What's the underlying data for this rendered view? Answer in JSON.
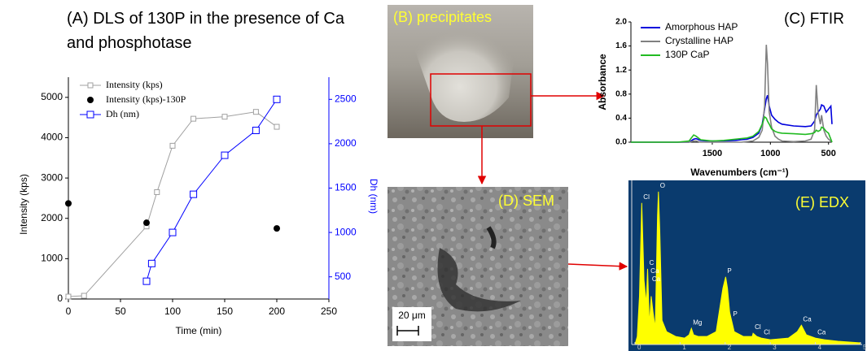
{
  "chart_data": [
    {
      "type": "line",
      "title": "(A) DLS of 130P in the presence of Ca and phosphotase",
      "x_label": "Time (min)",
      "y_label": "Intensity (kps)",
      "y2_label": "Dh (nm)",
      "xlim": [
        0,
        250
      ],
      "xticks": [
        0,
        50,
        100,
        150,
        200,
        250
      ],
      "ylim": [
        0,
        5500
      ],
      "yticks": [
        0,
        1000,
        2000,
        3000,
        4000,
        5000
      ],
      "y2lim": [
        250,
        2750
      ],
      "y2ticks": [
        500,
        1000,
        1500,
        2000,
        2500
      ],
      "legend": "upper left",
      "series": [
        {
          "name": "Intensity (kps)",
          "color": "#a0a0a0",
          "marker": "open-square",
          "line": true,
          "x": [
            0,
            15,
            75,
            85,
            100,
            120,
            150,
            180,
            200
          ],
          "values": [
            60,
            80,
            1800,
            2650,
            3800,
            4470,
            4520,
            4640,
            4270
          ]
        },
        {
          "name": "Intensity (kps)-130P",
          "color": "#000000",
          "marker": "dot",
          "line": false,
          "x": [
            0,
            75,
            200
          ],
          "values": [
            2370,
            1890,
            1750
          ]
        },
        {
          "name": "Dh (nm)",
          "color": "#0000ff",
          "marker": "open-square",
          "line": true,
          "axis": "y2",
          "x": [
            75,
            80,
            100,
            120,
            150,
            180,
            200
          ],
          "values": [
            450,
            650,
            1000,
            1430,
            1870,
            2150,
            2500
          ]
        }
      ]
    },
    {
      "type": "line",
      "title": "(C) FTIR",
      "x_label": "Wavenumbers (cm⁻¹)",
      "y_label": "Absorbance",
      "xlim": [
        2200,
        470
      ],
      "xticks": [
        1500,
        1000,
        500
      ],
      "ylim": [
        0,
        2
      ],
      "yticks": [
        {
          "value": 0,
          "label": "0.0"
        },
        0.4,
        0.8,
        1.2,
        1.6,
        {
          "value": 2,
          "label": "2.0"
        }
      ],
      "legend": "upper left",
      "x": [
        2200,
        2000,
        1800,
        1700,
        1660,
        1640,
        1600,
        1550,
        1500,
        1400,
        1300,
        1250,
        1200,
        1150,
        1100,
        1070,
        1050,
        1035,
        1025,
        1010,
        990,
        960,
        930,
        900,
        800,
        700,
        650,
        620,
        605,
        590,
        570,
        560,
        540,
        520,
        500,
        480,
        470
      ],
      "series": [
        {
          "name": "Amorphous HAP",
          "color": "#0000dd",
          "values": [
            0,
            0,
            0,
            0,
            0.05,
            0.06,
            0.03,
            0.02,
            0.02,
            0.02,
            0.03,
            0.04,
            0.05,
            0.08,
            0.15,
            0.3,
            0.55,
            0.72,
            0.78,
            0.6,
            0.45,
            0.38,
            0.33,
            0.3,
            0.27,
            0.26,
            0.27,
            0.35,
            0.45,
            0.5,
            0.55,
            0.62,
            0.6,
            0.5,
            0.55,
            0.6,
            0.3
          ]
        },
        {
          "name": "Crystalline HAP",
          "color": "#808080",
          "values": [
            0,
            0,
            0,
            0,
            0.02,
            0.02,
            0,
            0,
            0,
            0,
            0,
            0,
            0.01,
            0.02,
            0.08,
            0.2,
            0.6,
            1.62,
            1.3,
            0.5,
            0.25,
            0.1,
            0.05,
            0.02,
            0.01,
            0.02,
            0.05,
            0.2,
            0.95,
            0.5,
            0.3,
            0.45,
            0.2,
            0.1,
            0.05,
            0.02,
            0
          ]
        },
        {
          "name": "130P CaP",
          "color": "#22bb22",
          "values": [
            0,
            0,
            0,
            0.02,
            0.12,
            0.1,
            0.04,
            0.03,
            0.02,
            0.03,
            0.05,
            0.06,
            0.07,
            0.1,
            0.18,
            0.3,
            0.42,
            0.4,
            0.35,
            0.3,
            0.22,
            0.18,
            0.16,
            0.15,
            0.14,
            0.13,
            0.14,
            0.16,
            0.2,
            0.18,
            0.2,
            0.25,
            0.23,
            0.18,
            0.15,
            0.05,
            0
          ]
        }
      ]
    },
    {
      "type": "area",
      "title": "(E) EDX",
      "color": "#ffff00",
      "background": "#0a3b6e",
      "xlim": [
        0,
        5
      ],
      "xticks": [
        0,
        1,
        2,
        3,
        4,
        5
      ],
      "ylim": [
        0,
        100
      ],
      "x": [
        0,
        0.05,
        0.1,
        0.15,
        0.2,
        0.25,
        0.28,
        0.32,
        0.36,
        0.4,
        0.45,
        0.5,
        0.52,
        0.55,
        0.6,
        0.7,
        0.9,
        1.1,
        1.2,
        1.25,
        1.3,
        1.4,
        1.6,
        1.8,
        1.95,
        2.01,
        2.05,
        2.1,
        2.2,
        2.4,
        2.6,
        2.62,
        2.7,
        2.8,
        3.0,
        3.4,
        3.6,
        3.69,
        3.8,
        4.0,
        4.2,
        4.5,
        5.0
      ],
      "values": [
        0,
        5,
        30,
        88,
        40,
        25,
        47,
        12,
        30,
        20,
        10,
        80,
        95,
        70,
        15,
        8,
        5,
        4,
        6,
        10,
        6,
        5,
        5,
        8,
        35,
        42,
        35,
        20,
        8,
        5,
        5,
        7,
        5,
        4,
        3,
        4,
        8,
        12,
        6,
        4,
        3,
        2,
        1
      ],
      "peaks": [
        {
          "label": "Cl",
          "x": 0.15
        },
        {
          "label": "C",
          "x": 0.28
        },
        {
          "label": "Ca",
          "x": 0.31
        },
        {
          "label": "Ca",
          "x": 0.34
        },
        {
          "label": "O",
          "x": 0.52
        },
        {
          "label": "Mg",
          "x": 1.25
        },
        {
          "label": "P",
          "x": 2.01
        },
        {
          "label": "P",
          "x": 2.14
        },
        {
          "label": "Cl",
          "x": 2.62
        },
        {
          "label": "Cl",
          "x": 2.82
        },
        {
          "label": "Ca",
          "x": 3.69
        },
        {
          "label": "Ca",
          "x": 4.01
        }
      ]
    }
  ],
  "images": [
    {
      "label": "(B) precipitates"
    },
    {
      "label": "(D) SEM",
      "scale_bar": "20 μm"
    }
  ]
}
